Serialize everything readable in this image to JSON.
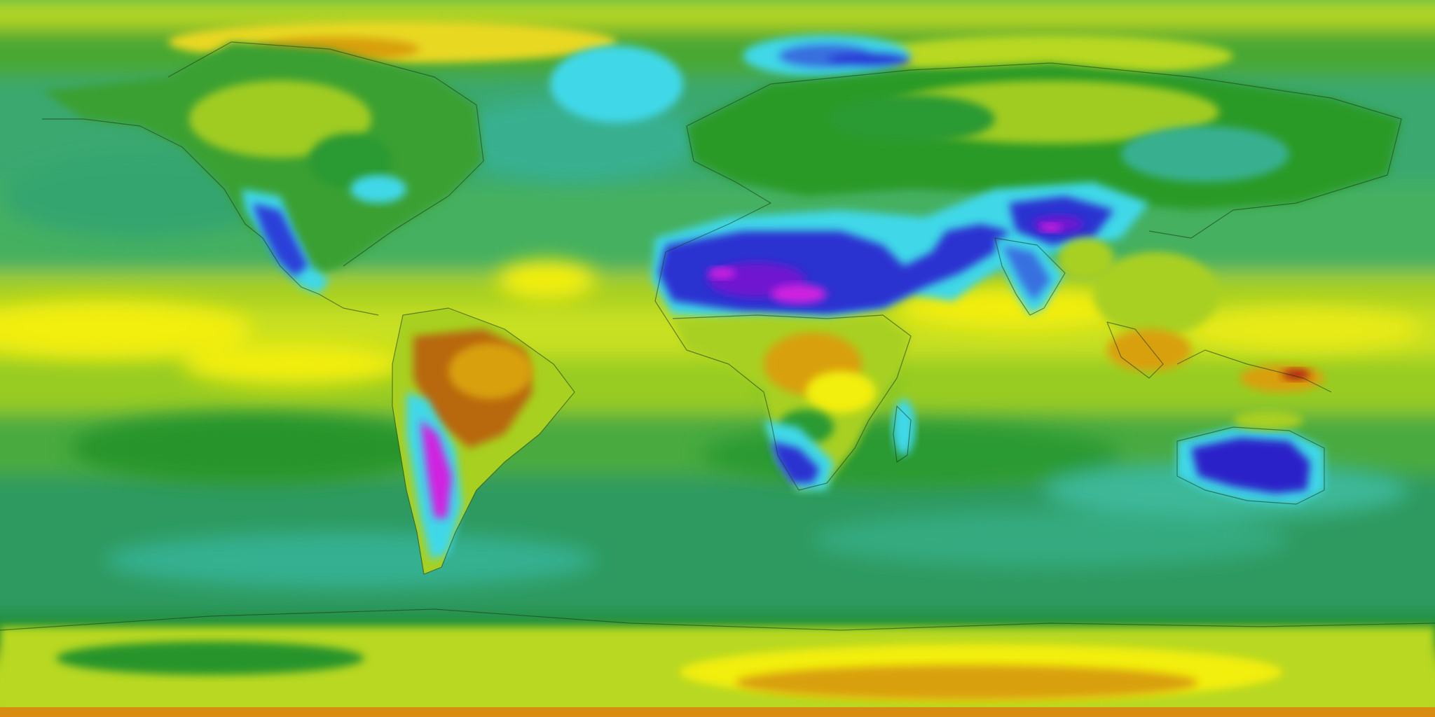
{
  "map": {
    "projection": "equirectangular",
    "extent": {
      "lon": [
        -180,
        180
      ],
      "lat": [
        -90,
        90
      ]
    },
    "palette": {
      "magenta": "#d020e0",
      "violet": "#7018d0",
      "deep_blue": "#2020c8",
      "blue": "#3870e0",
      "cyan": "#40d8e8",
      "teal": "#30b090",
      "teal_green": "#28a060",
      "green": "#2a9a30",
      "dark_green": "#1d8a22",
      "yellow_green": "#a8d020",
      "light_green": "#7cc820",
      "yellow": "#f2ee10",
      "orange": "#d8a010",
      "brown": "#b86808",
      "red_brown": "#b02010"
    },
    "ocean_background_color": "#4db25d",
    "coastline_color": "#1a3a1a"
  }
}
